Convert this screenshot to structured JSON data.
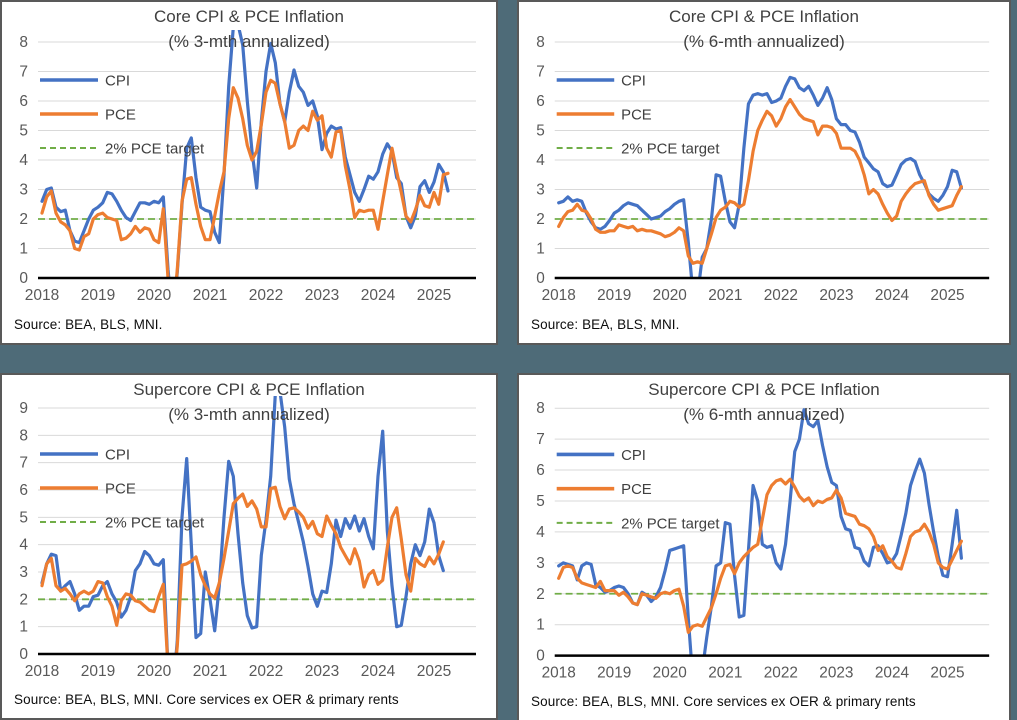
{
  "app": {
    "background_color": "#4e6b78",
    "panel_border_color": "#595959",
    "panel_background": "#ffffff"
  },
  "colors": {
    "cpi": "#4472C4",
    "pce": "#ED7D31",
    "target": "#70AD47",
    "gridline": "#D9D9D9",
    "axis": "#000000",
    "tick_label": "#595959",
    "title": "#404040",
    "source_text": "#0d0d0d"
  },
  "legend": {
    "position": "top-left-inside-plot",
    "entries": [
      {
        "label": "CPI",
        "color": "#4472C4",
        "style": "solid"
      },
      {
        "label": "PCE",
        "color": "#ED7D31",
        "style": "solid"
      },
      {
        "label": "2% PCE target",
        "color": "#70AD47",
        "style": "dashed"
      }
    ]
  },
  "chart_data": [
    {
      "type": "line",
      "title_line1": "Core CPI & PCE Inflation",
      "title_line2": "(% 3-mth annualized)",
      "source": "Source: BEA, BLS, MNI.",
      "x_start": "2018-01",
      "x_frequency": "monthly",
      "x_tick_labels": [
        "2018",
        "2019",
        "2020",
        "2021",
        "2022",
        "2023",
        "2024",
        "2025"
      ],
      "ylim": [
        0,
        8
      ],
      "yticks": [
        0,
        1,
        2,
        3,
        4,
        5,
        6,
        7,
        8
      ],
      "grid": true,
      "target_value": 2,
      "series": [
        {
          "name": "CPI",
          "color": "#4472C4",
          "values": [
            2.6,
            3.0,
            3.05,
            2.4,
            2.25,
            2.3,
            1.6,
            1.25,
            1.2,
            1.6,
            2.0,
            2.3,
            2.4,
            2.55,
            2.9,
            2.85,
            2.6,
            2.3,
            2.05,
            1.95,
            2.25,
            2.55,
            2.55,
            2.5,
            2.6,
            2.55,
            2.75,
            0.3,
            -1.5,
            0.2,
            2.5,
            4.4,
            4.75,
            3.4,
            2.4,
            2.3,
            2.25,
            1.55,
            1.2,
            3.5,
            6.5,
            8.5,
            8.6,
            7.9,
            6.0,
            4.3,
            3.05,
            5.3,
            7.0,
            7.95,
            7.3,
            5.9,
            5.3,
            6.3,
            7.05,
            6.5,
            6.3,
            5.85,
            6.0,
            5.5,
            4.35,
            4.9,
            5.15,
            5.05,
            5.1,
            4.1,
            3.5,
            2.9,
            2.6,
            3.0,
            3.45,
            3.35,
            3.6,
            4.2,
            4.55,
            4.3,
            3.4,
            3.2,
            2.1,
            1.7,
            2.1,
            3.1,
            3.3,
            2.9,
            3.25,
            3.85,
            3.6,
            2.95
          ]
        },
        {
          "name": "PCE",
          "color": "#ED7D31",
          "values": [
            2.2,
            2.75,
            2.95,
            2.2,
            1.9,
            1.8,
            1.6,
            1.0,
            0.95,
            1.4,
            1.5,
            2.0,
            2.15,
            2.2,
            2.05,
            2.0,
            1.95,
            1.3,
            1.35,
            1.5,
            1.75,
            1.55,
            1.7,
            1.65,
            1.3,
            1.2,
            2.35,
            0.0,
            -1.5,
            0.3,
            2.6,
            3.35,
            3.4,
            2.5,
            1.75,
            1.3,
            1.3,
            2.1,
            2.9,
            3.6,
            5.4,
            6.45,
            6.1,
            5.4,
            4.5,
            4.0,
            4.3,
            5.2,
            6.3,
            6.7,
            6.6,
            5.9,
            5.3,
            4.4,
            4.5,
            5.0,
            5.15,
            5.0,
            5.65,
            5.35,
            5.5,
            4.4,
            4.1,
            4.95,
            5.0,
            3.8,
            3.0,
            2.05,
            2.3,
            2.25,
            2.3,
            2.3,
            1.65,
            2.6,
            3.5,
            4.4,
            3.6,
            2.9,
            2.1,
            1.9,
            2.3,
            2.8,
            2.45,
            2.4,
            2.9,
            2.5,
            3.5,
            3.55
          ]
        },
        {
          "name": "2% PCE target",
          "color": "#70AD47",
          "style": "dashed",
          "constant": 2
        }
      ]
    },
    {
      "type": "line",
      "title_line1": "Core CPI & PCE Inflation",
      "title_line2": "(% 6-mth annualized)",
      "source": "Source: BEA, BLS, MNI.",
      "x_start": "2018-01",
      "x_frequency": "monthly",
      "x_tick_labels": [
        "2018",
        "2019",
        "2020",
        "2021",
        "2022",
        "2023",
        "2024",
        "2025"
      ],
      "ylim": [
        0,
        8
      ],
      "yticks": [
        0,
        1,
        2,
        3,
        4,
        5,
        6,
        7,
        8
      ],
      "grid": true,
      "target_value": 2,
      "series": [
        {
          "name": "CPI",
          "color": "#4472C4",
          "values": [
            2.55,
            2.6,
            2.75,
            2.6,
            2.65,
            2.6,
            2.2,
            1.9,
            1.7,
            1.65,
            1.75,
            1.95,
            2.2,
            2.3,
            2.45,
            2.55,
            2.5,
            2.45,
            2.3,
            2.15,
            2.0,
            2.05,
            2.1,
            2.25,
            2.35,
            2.5,
            2.6,
            2.65,
            1.2,
            -0.5,
            -0.6,
            0.7,
            1.0,
            2.0,
            3.5,
            3.45,
            2.6,
            1.9,
            1.7,
            2.5,
            4.4,
            5.9,
            6.2,
            6.25,
            6.2,
            6.25,
            5.95,
            6.0,
            6.1,
            6.5,
            6.8,
            6.75,
            6.45,
            6.35,
            6.5,
            6.2,
            5.85,
            6.1,
            6.45,
            6.05,
            5.4,
            5.2,
            5.2,
            5.0,
            4.95,
            4.6,
            4.1,
            3.9,
            3.7,
            3.6,
            3.2,
            3.1,
            3.15,
            3.5,
            3.85,
            4.0,
            4.05,
            3.95,
            3.5,
            3.2,
            2.85,
            2.7,
            2.6,
            2.8,
            3.1,
            3.65,
            3.6,
            3.05
          ]
        },
        {
          "name": "PCE",
          "color": "#ED7D31",
          "values": [
            1.75,
            2.05,
            2.25,
            2.3,
            2.5,
            2.3,
            2.25,
            2.0,
            1.65,
            1.55,
            1.55,
            1.6,
            1.6,
            1.8,
            1.75,
            1.7,
            1.75,
            1.6,
            1.65,
            1.6,
            1.6,
            1.55,
            1.5,
            1.4,
            1.45,
            1.55,
            1.7,
            1.6,
            0.75,
            0.5,
            0.55,
            0.5,
            1.0,
            1.5,
            2.05,
            2.3,
            2.4,
            2.6,
            2.55,
            2.4,
            2.5,
            3.3,
            4.3,
            5.0,
            5.35,
            5.65,
            5.5,
            5.15,
            5.4,
            5.8,
            6.05,
            5.8,
            5.55,
            5.4,
            5.35,
            5.3,
            4.85,
            5.15,
            5.15,
            5.1,
            4.9,
            4.4,
            4.4,
            4.4,
            4.3,
            4.0,
            3.5,
            2.85,
            3.0,
            2.85,
            2.5,
            2.2,
            1.95,
            2.1,
            2.6,
            2.85,
            3.05,
            3.2,
            3.25,
            3.3,
            2.8,
            2.5,
            2.3,
            2.35,
            2.4,
            2.45,
            2.8,
            3.1
          ]
        },
        {
          "name": "2% PCE target",
          "color": "#70AD47",
          "style": "dashed",
          "constant": 2
        }
      ]
    },
    {
      "type": "line",
      "title_line1": "Supercore CPI & PCE Inflation",
      "title_line2": "(% 3-mth annualized)",
      "source": "Source: BEA, BLS, MNI. Core services ex OER & primary rents",
      "x_start": "2018-01",
      "x_frequency": "monthly",
      "x_tick_labels": [
        "2018",
        "2019",
        "2020",
        "2021",
        "2022",
        "2023",
        "2024",
        "2025"
      ],
      "ylim": [
        0,
        9
      ],
      "yticks": [
        0,
        1,
        2,
        3,
        4,
        5,
        6,
        7,
        8,
        9
      ],
      "grid": true,
      "target_value": 2,
      "series": [
        {
          "name": "CPI",
          "color": "#4472C4",
          "values": [
            2.6,
            3.3,
            3.65,
            3.6,
            2.3,
            2.5,
            2.65,
            2.2,
            1.6,
            1.75,
            1.75,
            2.1,
            2.15,
            2.5,
            2.65,
            2.2,
            1.9,
            1.35,
            1.6,
            2.1,
            3.05,
            3.3,
            3.75,
            3.6,
            3.3,
            3.25,
            3.45,
            -0.5,
            -1.5,
            0.5,
            5.0,
            7.15,
            4.0,
            0.6,
            0.75,
            3.0,
            2.0,
            0.85,
            2.5,
            5.0,
            7.05,
            6.5,
            4.4,
            2.6,
            1.4,
            0.95,
            1.0,
            3.6,
            4.9,
            6.5,
            9.5,
            9.6,
            8.3,
            6.4,
            5.5,
            4.8,
            4.1,
            3.2,
            2.2,
            1.75,
            2.3,
            2.25,
            3.3,
            4.9,
            4.3,
            4.95,
            4.6,
            5.05,
            4.5,
            4.95,
            4.3,
            3.85,
            6.5,
            8.15,
            4.5,
            2.5,
            1.0,
            1.05,
            2.1,
            3.3,
            4.0,
            3.6,
            4.1,
            5.3,
            4.8,
            3.6,
            3.05
          ]
        },
        {
          "name": "PCE",
          "color": "#ED7D31",
          "values": [
            2.5,
            3.3,
            3.5,
            2.5,
            2.3,
            2.4,
            2.2,
            1.95,
            2.2,
            2.3,
            2.2,
            2.3,
            2.65,
            2.6,
            2.1,
            1.75,
            1.05,
            1.95,
            2.2,
            2.15,
            1.95,
            1.9,
            1.75,
            1.6,
            1.55,
            2.1,
            2.55,
            -0.5,
            -1.5,
            0.3,
            3.25,
            3.3,
            3.4,
            3.55,
            2.9,
            2.5,
            2.2,
            2.05,
            2.6,
            3.5,
            4.5,
            5.5,
            5.7,
            5.85,
            5.4,
            5.6,
            5.3,
            4.65,
            4.65,
            6.05,
            6.1,
            5.4,
            4.95,
            5.3,
            5.35,
            5.2,
            5.0,
            4.6,
            4.85,
            4.4,
            4.3,
            5.05,
            4.7,
            4.4,
            3.9,
            3.6,
            3.3,
            3.85,
            3.4,
            2.45,
            2.9,
            3.05,
            2.55,
            2.7,
            3.9,
            5.0,
            5.35,
            4.2,
            2.9,
            2.3,
            3.5,
            3.3,
            3.2,
            3.55,
            3.3,
            3.65,
            4.1
          ]
        },
        {
          "name": "2% PCE target",
          "color": "#70AD47",
          "style": "dashed",
          "constant": 2
        }
      ]
    },
    {
      "type": "line",
      "title_line1": "Supercore CPI & PCE Inflation",
      "title_line2": "(% 6-mth annualized)",
      "source": "Source: BEA, BLS, MNI. Core services ex OER & primary rents",
      "x_start": "2018-01",
      "x_frequency": "monthly",
      "x_tick_labels": [
        "2018",
        "2019",
        "2020",
        "2021",
        "2022",
        "2023",
        "2024",
        "2025"
      ],
      "ylim": [
        0,
        8
      ],
      "yticks": [
        0,
        1,
        2,
        3,
        4,
        5,
        6,
        7,
        8
      ],
      "grid": true,
      "target_value": 2,
      "series": [
        {
          "name": "CPI",
          "color": "#4472C4",
          "values": [
            2.9,
            3.0,
            2.95,
            2.9,
            2.45,
            2.9,
            3.0,
            2.95,
            2.3,
            2.2,
            2.05,
            2.1,
            2.2,
            2.25,
            2.2,
            2.0,
            1.7,
            1.65,
            2.05,
            1.95,
            1.75,
            1.9,
            2.2,
            2.75,
            3.4,
            3.45,
            3.5,
            3.55,
            1.2,
            -0.8,
            -1.0,
            -0.5,
            0.6,
            1.6,
            2.9,
            3.0,
            4.3,
            4.25,
            2.6,
            1.25,
            1.3,
            3.4,
            5.5,
            5.0,
            3.6,
            3.5,
            3.55,
            3.0,
            2.8,
            3.6,
            5.0,
            6.6,
            7.0,
            7.95,
            7.5,
            7.4,
            7.6,
            6.8,
            6.1,
            5.6,
            5.5,
            4.5,
            4.1,
            4.05,
            3.5,
            3.45,
            3.05,
            2.9,
            3.5,
            3.55,
            3.3,
            3.0,
            3.05,
            3.3,
            3.9,
            4.6,
            5.5,
            5.95,
            6.35,
            5.9,
            4.9,
            4.0,
            3.2,
            2.6,
            2.55,
            3.6,
            4.7,
            3.15
          ]
        },
        {
          "name": "PCE",
          "color": "#ED7D31",
          "values": [
            2.5,
            2.85,
            2.9,
            2.85,
            2.5,
            2.35,
            2.3,
            2.25,
            2.2,
            2.4,
            2.1,
            2.1,
            2.1,
            1.95,
            2.05,
            1.9,
            1.7,
            1.65,
            2.0,
            1.95,
            1.9,
            1.85,
            2.0,
            2.05,
            2.0,
            2.1,
            2.15,
            1.6,
            0.75,
            0.95,
            1.0,
            0.95,
            1.25,
            1.55,
            2.0,
            2.5,
            2.9,
            2.95,
            2.65,
            3.0,
            3.2,
            3.35,
            3.5,
            3.6,
            4.4,
            5.2,
            5.5,
            5.65,
            5.7,
            5.55,
            5.7,
            5.45,
            5.15,
            5.0,
            5.1,
            4.85,
            5.0,
            4.95,
            5.05,
            5.1,
            5.35,
            5.1,
            4.6,
            4.55,
            4.5,
            4.25,
            4.2,
            4.1,
            3.85,
            3.4,
            3.55,
            3.2,
            3.05,
            2.85,
            2.8,
            3.3,
            3.85,
            4.0,
            4.05,
            4.25,
            4.0,
            3.6,
            3.0,
            2.85,
            2.8,
            3.1,
            3.4,
            3.7
          ]
        },
        {
          "name": "2% PCE target",
          "color": "#70AD47",
          "style": "dashed",
          "constant": 2
        }
      ]
    }
  ]
}
